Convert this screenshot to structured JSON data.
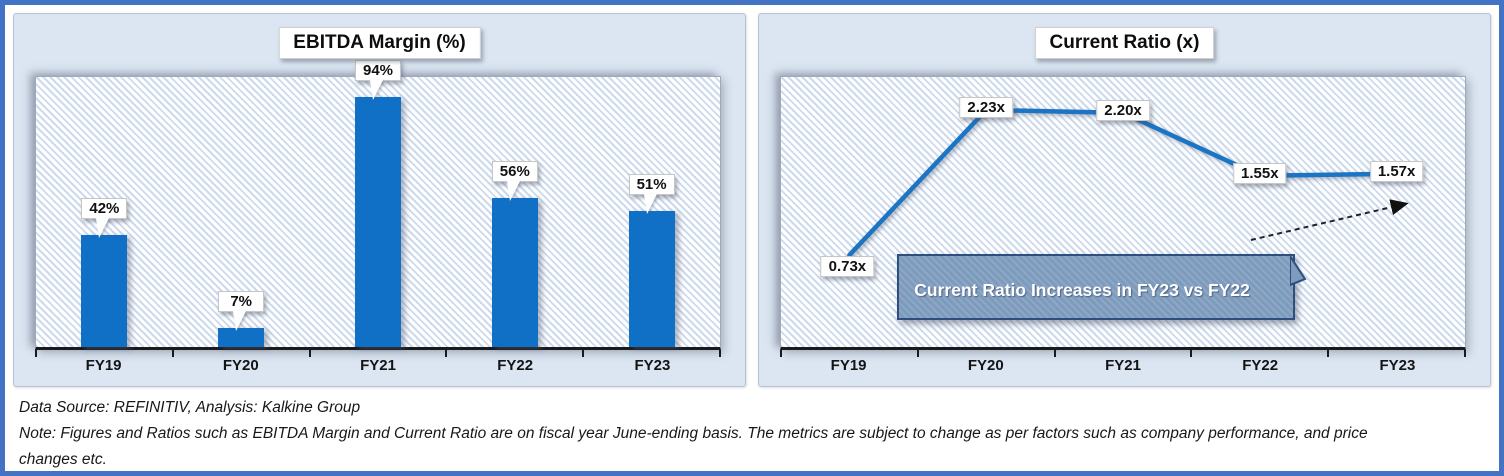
{
  "chart_data": [
    {
      "type": "bar",
      "title": "EBITDA Margin (%)",
      "categories": [
        "FY19",
        "FY20",
        "FY21",
        "FY22",
        "FY23"
      ],
      "values": [
        42,
        7,
        94,
        56,
        51
      ],
      "labels": [
        "42%",
        "7%",
        "94%",
        "56%",
        "51%"
      ],
      "unit": "%",
      "xlabel": "",
      "ylabel": "EBITDA Margin",
      "ylim": [
        0,
        101.5
      ],
      "grid": false,
      "legend": "none",
      "plot_background": "diagonal-hatch"
    },
    {
      "type": "line",
      "title": "Current Ratio (x)",
      "categories": [
        "FY19",
        "FY20",
        "FY21",
        "FY22",
        "FY23"
      ],
      "values": [
        0.73,
        2.23,
        2.2,
        1.55,
        1.57
      ],
      "labels": [
        "0.73x",
        "2.23x",
        "2.20x",
        "1.55x",
        "1.57x"
      ],
      "unit": "x",
      "xlabel": "",
      "ylabel": "Current Ratio",
      "grid": false,
      "legend": "none",
      "plot_background": "diagonal-hatch",
      "callout": "Current Ratio Increases in FY23 vs FY22",
      "annotation_arrow": "dashed arrow from FY22 area up to FY23 1.57x label"
    }
  ],
  "figure": {
    "footer": {
      "source": "Data Source: REFINITIV, Analysis: Kalkine Group",
      "note": "Note: Figures and Ratios such as EBITDA Margin and Current Ratio are on fiscal year June-ending basis. The metrics are subject to change as per factors such as company performance, and price changes etc."
    }
  },
  "colors": {
    "frame_border": "#4472c4",
    "panel_bg": "#dce6f2",
    "hatch_blue": "#ccdaee",
    "bar_blue": "#0f70c5",
    "line_blue": "#1b75c4",
    "callout_fill": "#7d9bbd",
    "callout_border": "#2e4e7e",
    "axis_black": "#1a1a1a"
  }
}
